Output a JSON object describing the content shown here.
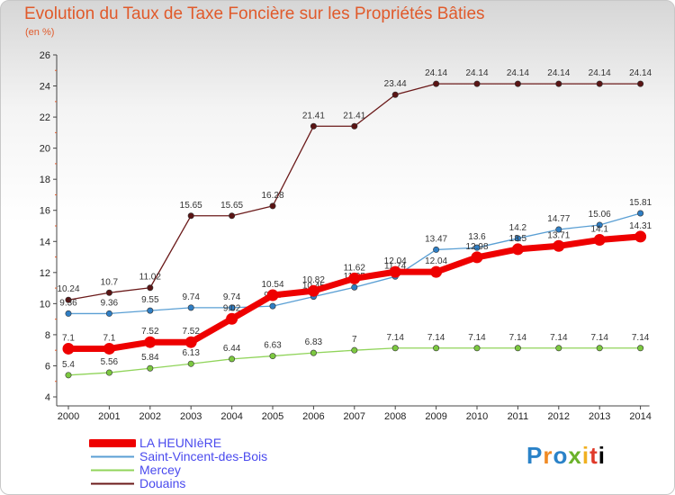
{
  "chart_data": {
    "type": "line",
    "title": "Evolution du Taux de Taxe Foncière sur les Propriétés Bâties",
    "subtitle": "(en %)",
    "categories": [
      "2000",
      "2001",
      "2002",
      "2003",
      "2004",
      "2005",
      "2006",
      "2007",
      "2008",
      "2009",
      "2010",
      "2011",
      "2012",
      "2013",
      "2014"
    ],
    "ylim": [
      4,
      26
    ],
    "yticks": [
      4,
      6,
      8,
      10,
      12,
      14,
      16,
      18,
      20,
      22,
      24,
      26
    ],
    "grid": false,
    "legend_position": "bottom-left",
    "series": [
      {
        "name": "Douains",
        "color": "#6b1a1a",
        "marker": "#5a1414",
        "values": [
          10.24,
          10.7,
          11.02,
          15.65,
          15.65,
          16.28,
          21.41,
          21.41,
          23.44,
          24.14,
          24.14,
          24.14,
          24.14,
          24.14,
          24.14
        ],
        "labels": [
          "10.24",
          "10.7",
          "11.02",
          "15.65",
          "15.65",
          "16.28",
          "21.41",
          "21.41",
          "23.44",
          "24.14",
          "24.14",
          "24.14",
          "24.14",
          "24.14",
          "24.14"
        ]
      },
      {
        "name": "Saint-Vincent-des-Bois",
        "color": "#5a9fd4",
        "marker": "#2f7ec4",
        "values": [
          9.36,
          9.36,
          9.55,
          9.74,
          9.74,
          9.84,
          10.45,
          11.05,
          11.74,
          13.47,
          13.6,
          14.2,
          14.77,
          15.06,
          15.81
        ],
        "labels": [
          "9.36",
          "9.36",
          "9.55",
          "9.74",
          "9.74",
          "9.84",
          "10.45",
          "11.05",
          "11.74",
          "13.47",
          "13.6",
          "14.2",
          "14.77",
          "15.06",
          "15.81"
        ]
      },
      {
        "name": "Mercey",
        "color": "#90d45a",
        "marker": "#7cc840",
        "values": [
          5.4,
          5.56,
          5.84,
          6.13,
          6.44,
          6.63,
          6.83,
          7,
          7.14,
          7.14,
          7.14,
          7.14,
          7.14,
          7.14,
          7.14
        ],
        "labels": [
          "5.4",
          "5.56",
          "5.84",
          "6.13",
          "6.44",
          "6.63",
          "6.83",
          "7",
          "7.14",
          "7.14",
          "7.14",
          "7.14",
          "7.14",
          "7.14",
          "7.14"
        ]
      },
      {
        "name": "LA HEUNIèRE",
        "color": "#ee0000",
        "marker": "#ee0000",
        "values": [
          7.1,
          7.1,
          7.52,
          7.52,
          9.02,
          10.54,
          10.82,
          11.62,
          12.04,
          12.04,
          12.98,
          13.5,
          13.71,
          14.1,
          14.31
        ],
        "labels": [
          "7.1",
          "7.1",
          "7.52",
          "7.52",
          "9.02",
          "10.54",
          "10.82",
          "11.62",
          "12.04",
          "12.04",
          "12.98",
          "13.5",
          "13.71",
          "14.1",
          "14.31"
        ]
      }
    ]
  },
  "legend": [
    {
      "label": "LA HEUNIèRE",
      "color": "#ee0000",
      "weight": "thick"
    },
    {
      "label": "Saint-Vincent-des-Bois",
      "color": "#5a9fd4",
      "weight": "thin"
    },
    {
      "label": "Mercey",
      "color": "#90d45a",
      "weight": "thin"
    },
    {
      "label": "Douains",
      "color": "#6b1a1a",
      "weight": "thin"
    }
  ],
  "logo": {
    "letters": [
      "P",
      "r",
      "o",
      "x",
      "i",
      "t",
      "i"
    ],
    "text": "Proxiti"
  }
}
